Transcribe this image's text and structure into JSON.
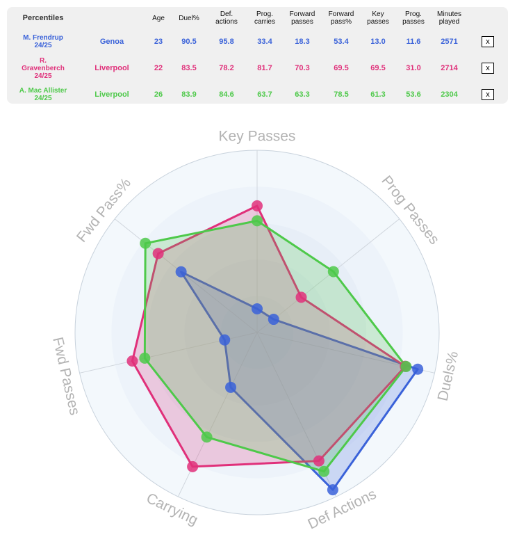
{
  "table": {
    "header": [
      "Percentiles",
      "Age",
      "Duel%",
      "Def. actions",
      "Prog. carries",
      "Forward passes",
      "Forward pass%",
      "Key passes",
      "Prog. passes",
      "Minutes played"
    ],
    "header_lines": [
      [
        "Percentiles"
      ],
      [
        "Age"
      ],
      [
        "Duel%"
      ],
      [
        "Def.",
        "actions"
      ],
      [
        "Prog.",
        "carries"
      ],
      [
        "Forward",
        "passes"
      ],
      [
        "Forward",
        "pass%"
      ],
      [
        "Key",
        "passes"
      ],
      [
        "Prog.",
        "passes"
      ],
      [
        "Minutes",
        "played"
      ]
    ],
    "rows": [
      {
        "name_lines": [
          "M. Frendrup",
          "24/25"
        ],
        "team": "Genoa",
        "age": "23",
        "duel": "90.5",
        "def_actions": "95.8",
        "prog_carries": "33.4",
        "fwd_passes": "18.3",
        "fwd_pass_pct": "53.4",
        "key_passes": "13.0",
        "prog_passes": "11.6",
        "minutes": "2571",
        "color": "#3a62d9",
        "close": "x"
      },
      {
        "name_lines": [
          "R.",
          "Gravenberch",
          "24/25"
        ],
        "team": "Liverpool",
        "age": "22",
        "duel": "83.5",
        "def_actions": "78.2",
        "prog_carries": "81.7",
        "fwd_passes": "70.3",
        "fwd_pass_pct": "69.5",
        "key_passes": "69.5",
        "prog_passes": "31.0",
        "minutes": "2714",
        "color": "#e0307a",
        "close": "x"
      },
      {
        "name_lines": [
          "A. Mac Allister",
          "24/25"
        ],
        "team": "Liverpool",
        "age": "26",
        "duel": "83.9",
        "def_actions": "84.6",
        "prog_carries": "63.7",
        "fwd_passes": "63.3",
        "fwd_pass_pct": "78.5",
        "key_passes": "61.3",
        "prog_passes": "53.6",
        "minutes": "2304",
        "color": "#4ec94a",
        "close": "x"
      }
    ]
  },
  "chart_data": {
    "type": "radar",
    "axes": [
      "Key Passes",
      "Prog Passes",
      "Duels%",
      "Def Actions",
      "Carrying",
      "Fwd Passes",
      "Fwd Pass%"
    ],
    "range": [
      0,
      100
    ],
    "series": [
      {
        "name": "M. Frendrup",
        "color": "#3a62d9",
        "values": [
          13.0,
          11.6,
          90.5,
          95.8,
          33.4,
          18.3,
          53.4
        ]
      },
      {
        "name": "R. Gravenberch",
        "color": "#e0307a",
        "values": [
          69.5,
          31.0,
          83.5,
          78.2,
          81.7,
          70.3,
          69.5
        ]
      },
      {
        "name": "A. Mac Allister",
        "color": "#4ec94a",
        "values": [
          61.3,
          53.6,
          83.9,
          84.6,
          63.7,
          63.3,
          78.5
        ]
      }
    ],
    "fill_opacity": 0.22,
    "grid_colors": [
      "#f3f8fc",
      "#edf3fa",
      "#e7eef7",
      "#e2eaf4",
      "#dde6f1"
    ]
  }
}
